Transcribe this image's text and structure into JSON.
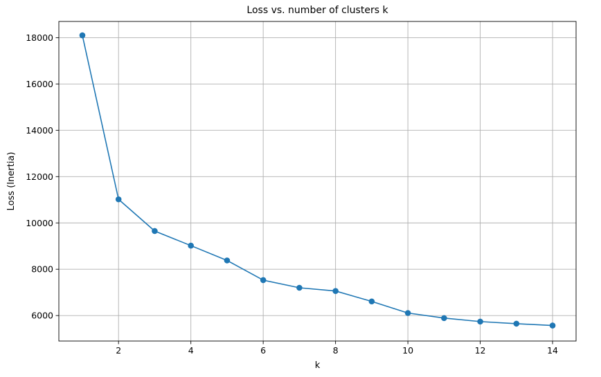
{
  "chart_data": {
    "type": "line",
    "title": "Loss vs. number of clusters k",
    "xlabel": "k",
    "ylabel": "Loss (Inertia)",
    "xlim": [
      0.35,
      14.65
    ],
    "ylim": [
      4900,
      18700
    ],
    "xticks": [
      2,
      4,
      6,
      8,
      10,
      12,
      14
    ],
    "yticks": [
      6000,
      8000,
      10000,
      12000,
      14000,
      16000,
      18000
    ],
    "grid": true,
    "series": [
      {
        "color": "#1f77b4",
        "marker": "circle",
        "x": [
          1,
          2,
          3,
          4,
          5,
          6,
          7,
          8,
          9,
          10,
          11,
          12,
          13,
          14
        ],
        "y": [
          18100,
          11020,
          9650,
          9020,
          8380,
          7530,
          7200,
          7060,
          6610,
          6110,
          5890,
          5740,
          5650,
          5570
        ]
      }
    ]
  }
}
